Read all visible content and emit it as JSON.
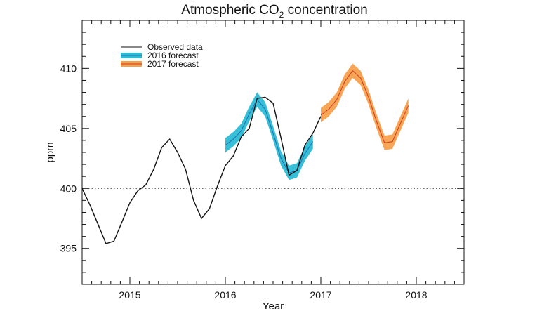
{
  "chart_data": {
    "type": "line",
    "title_main": "Atmospheric CO",
    "title_sub": "2",
    "title_end": " concentration",
    "xlabel": "Year",
    "ylabel": "ppm",
    "xlim": [
      2014.5,
      2018.5
    ],
    "ylim": [
      392,
      414
    ],
    "x_ticks": [
      2015,
      2016,
      2017,
      2018
    ],
    "x_tick_labels": [
      "2015",
      "2016",
      "2017",
      "2018"
    ],
    "y_ticks": [
      395,
      400,
      405,
      410
    ],
    "y_tick_labels": [
      "395",
      "400",
      "405",
      "410"
    ],
    "reference_line": 400,
    "grid": false,
    "legend_position": "top-left",
    "series": [
      {
        "name": "Observed data",
        "color": "#111111",
        "kind": "line",
        "x": [
          2014.5,
          2014.583,
          2014.667,
          2014.75,
          2014.833,
          2014.917,
          2015.0,
          2015.083,
          2015.167,
          2015.25,
          2015.333,
          2015.417,
          2015.5,
          2015.583,
          2015.667,
          2015.75,
          2015.833,
          2015.917,
          2016.0,
          2016.083,
          2016.167,
          2016.25,
          2016.333,
          2016.417,
          2016.5,
          2016.583,
          2016.667,
          2016.75,
          2016.833,
          2016.917,
          2017.0
        ],
        "values": [
          400.0,
          398.6,
          397.0,
          395.4,
          395.6,
          397.2,
          398.8,
          399.8,
          400.3,
          401.6,
          403.4,
          404.1,
          403.0,
          401.6,
          399.0,
          397.5,
          398.3,
          400.2,
          401.9,
          402.7,
          404.3,
          405.0,
          407.5,
          407.6,
          407.1,
          404.2,
          401.1,
          401.5,
          403.6,
          404.6,
          406.0
        ]
      },
      {
        "name": "2016 forecast",
        "color": "#1f6fb2",
        "band_color": "#2bbcd4",
        "kind": "band",
        "x": [
          2016.0,
          2016.083,
          2016.167,
          2016.25,
          2016.333,
          2016.417,
          2016.5,
          2016.583,
          2016.667,
          2016.75,
          2016.833,
          2016.917
        ],
        "values": [
          403.6,
          404.1,
          404.8,
          406.2,
          407.4,
          406.6,
          404.6,
          402.5,
          401.3,
          401.5,
          402.9,
          403.9
        ],
        "band": [
          0.6,
          0.6,
          0.6,
          0.6,
          0.6,
          0.6,
          0.6,
          0.6,
          0.6,
          0.6,
          0.6,
          0.6
        ]
      },
      {
        "name": "2017 forecast",
        "color": "#d23a1e",
        "band_color": "#f7a04e",
        "kind": "band",
        "x": [
          2017.0,
          2017.083,
          2017.167,
          2017.25,
          2017.333,
          2017.417,
          2017.5,
          2017.583,
          2017.667,
          2017.75,
          2017.833,
          2017.917
        ],
        "values": [
          406.1,
          406.6,
          407.4,
          408.9,
          409.8,
          409.2,
          407.6,
          405.6,
          403.8,
          403.9,
          405.4,
          406.9
        ],
        "band": [
          0.6,
          0.6,
          0.6,
          0.6,
          0.6,
          0.6,
          0.6,
          0.6,
          0.6,
          0.6,
          0.6,
          0.6
        ]
      }
    ]
  }
}
